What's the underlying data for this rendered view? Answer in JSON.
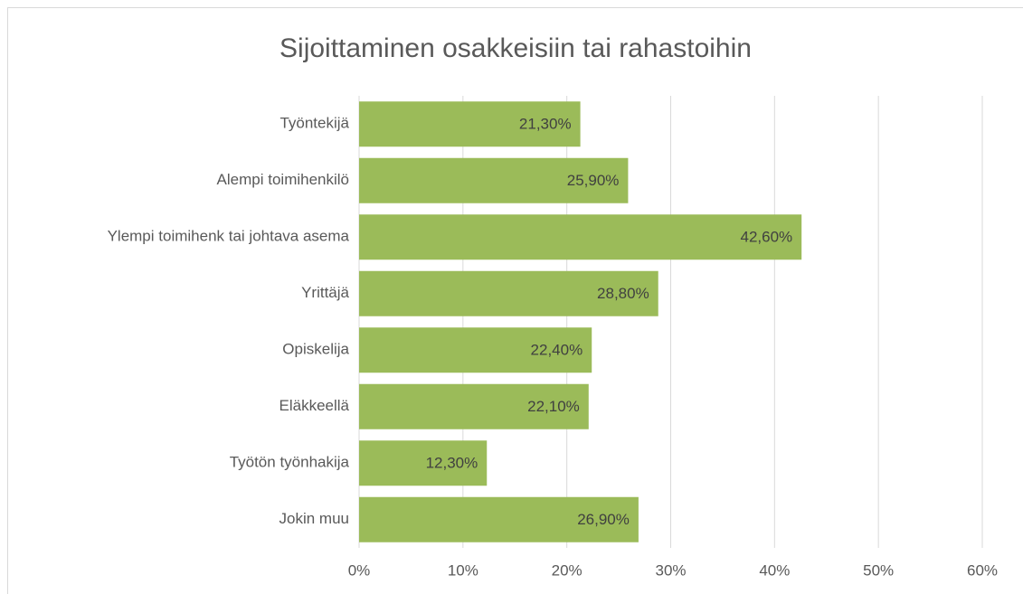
{
  "chart_data": {
    "type": "hbar",
    "title": "Sijoittaminen osakkeisiin tai rahastoihin",
    "categories": [
      "Työntekijä",
      "Alempi toimihenkilö",
      "Ylempi toimihenk tai johtava asema",
      "Yrittäjä",
      "Opiskelija",
      "Eläkkeellä",
      "Työtön työnhakija",
      "Jokin muu"
    ],
    "values": [
      21.3,
      25.9,
      42.6,
      28.8,
      22.4,
      22.1,
      12.3,
      26.9
    ],
    "value_labels": [
      "21,30%",
      "25,90%",
      "42,60%",
      "28,80%",
      "22,40%",
      "22,10%",
      "12,30%",
      "26,90%"
    ],
    "color": "#9bbb59",
    "xlim": [
      0,
      60
    ],
    "xticks": [
      {
        "value": 0,
        "label": "0%"
      },
      {
        "value": 10,
        "label": "10%"
      },
      {
        "value": 20,
        "label": "20%"
      },
      {
        "value": 30,
        "label": "30%"
      },
      {
        "value": 40,
        "label": "40%"
      },
      {
        "value": 50,
        "label": "50%"
      },
      {
        "value": 60,
        "label": "60%"
      }
    ],
    "grid": true
  }
}
